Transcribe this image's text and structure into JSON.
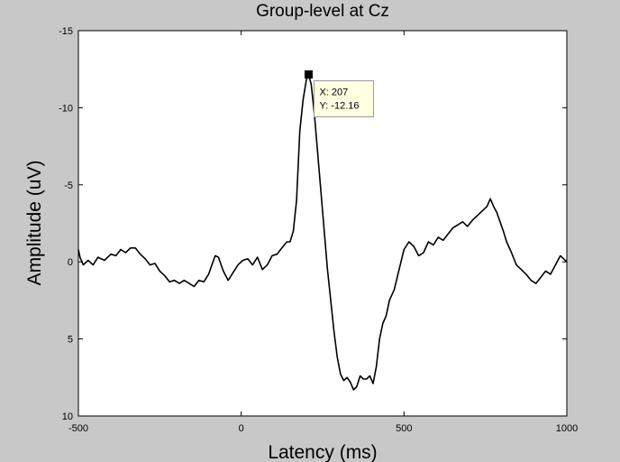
{
  "chart_data": {
    "type": "line",
    "title": "Group-level at Cz",
    "xlabel": "Latency (ms)",
    "ylabel": "Amplitude (uV)",
    "xlim": [
      -500,
      1000
    ],
    "ylim": [
      -15,
      10
    ],
    "y_reversed": true,
    "grid": false,
    "legend": "none",
    "xticks": [
      -500,
      0,
      500,
      1000
    ],
    "yticks": [
      -15,
      -10,
      -5,
      0,
      5,
      10
    ],
    "colors": {
      "figure_bg": "#c8c8c8",
      "axes_bg": "#ffffff",
      "line": "#000000",
      "tooltip_bg": "#ffffe1"
    },
    "series": [
      {
        "x": [
          -500,
          -495,
          -485,
          -470,
          -455,
          -440,
          -420,
          -400,
          -385,
          -370,
          -355,
          -340,
          -325,
          -310,
          -295,
          -280,
          -265,
          -250,
          -235,
          -220,
          -205,
          -190,
          -175,
          -160,
          -145,
          -130,
          -115,
          -100,
          -90,
          -80,
          -70,
          -55,
          -40,
          -25,
          -10,
          5,
          20,
          35,
          50,
          65,
          80,
          95,
          110,
          125,
          140,
          150,
          160,
          170,
          180,
          190,
          200,
          207,
          215,
          225,
          235,
          245,
          255,
          265,
          275,
          285,
          295,
          305,
          315,
          325,
          335,
          345,
          355,
          365,
          375,
          385,
          395,
          405,
          415,
          425,
          435,
          445,
          455,
          470,
          485,
          500,
          515,
          530,
          545,
          560,
          575,
          590,
          605,
          620,
          635,
          650,
          665,
          680,
          695,
          710,
          725,
          740,
          755,
          765,
          775,
          785,
          795,
          805,
          815,
          830,
          845,
          860,
          875,
          890,
          905,
          920,
          935,
          950,
          965,
          980,
          990,
          1000
        ],
        "y": [
          -0.8,
          -0.3,
          0.2,
          -0.1,
          0.2,
          -0.3,
          -0.1,
          -0.5,
          -0.4,
          -0.8,
          -0.6,
          -0.9,
          -0.9,
          -0.5,
          -0.2,
          0.2,
          0.1,
          0.6,
          0.9,
          1.3,
          1.2,
          1.4,
          1.2,
          1.4,
          1.6,
          1.2,
          1.3,
          0.8,
          0.2,
          -0.4,
          -0.3,
          0.6,
          1.2,
          0.7,
          0.2,
          -0.1,
          -0.2,
          0.2,
          -0.3,
          0.5,
          0.2,
          -0.4,
          -0.5,
          -0.9,
          -1.3,
          -1.3,
          -2.0,
          -4.0,
          -8.5,
          -10.5,
          -11.8,
          -12.16,
          -11.5,
          -9.5,
          -7.0,
          -4.5,
          -2.0,
          0.5,
          2.5,
          4.5,
          6.2,
          7.3,
          7.7,
          7.5,
          7.8,
          8.3,
          8.1,
          7.4,
          7.6,
          7.6,
          7.4,
          7.9,
          6.8,
          5.0,
          4.0,
          3.5,
          2.5,
          1.8,
          0.5,
          -0.8,
          -1.3,
          -1.0,
          -0.4,
          -0.6,
          -1.3,
          -1.1,
          -1.6,
          -1.4,
          -1.8,
          -2.2,
          -2.4,
          -2.6,
          -2.3,
          -2.7,
          -3.0,
          -3.3,
          -3.6,
          -4.1,
          -3.6,
          -3.2,
          -2.6,
          -2.0,
          -1.3,
          -0.6,
          0.2,
          0.5,
          0.8,
          1.2,
          1.4,
          1.0,
          0.6,
          0.8,
          0.2,
          -0.4,
          -0.2,
          0.0
        ]
      }
    ],
    "datatip": {
      "x": 207,
      "y": -12.16,
      "label_x": "X: 207",
      "label_y": "Y: -12.16"
    }
  }
}
